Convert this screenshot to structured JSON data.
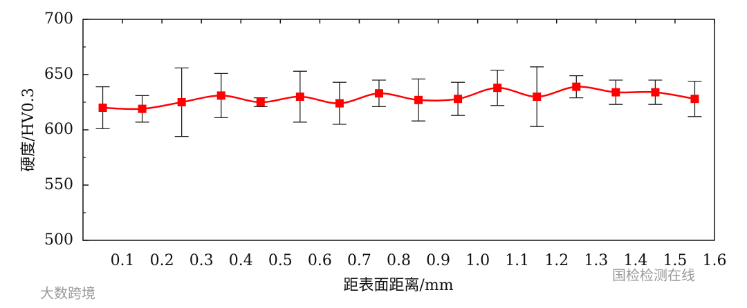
{
  "chart_data": {
    "type": "line",
    "x_label": "距表面距离/mm",
    "y_label": "硬度/HV0.3",
    "x": [
      0.05,
      0.15,
      0.25,
      0.35,
      0.45,
      0.55,
      0.65,
      0.75,
      0.85,
      0.95,
      1.05,
      1.15,
      1.25,
      1.35,
      1.45,
      1.55
    ],
    "series": [
      {
        "color": "#ff0000",
        "values": [
          620,
          619,
          625,
          631,
          625,
          630,
          624,
          633,
          627,
          628,
          638,
          630,
          639,
          634,
          634,
          628
        ],
        "errors": [
          19,
          12,
          31,
          20,
          4,
          23,
          19,
          12,
          19,
          15,
          16,
          27,
          10,
          11,
          11,
          16
        ]
      }
    ],
    "xlim": [
      0,
      1.6
    ],
    "xticks": [
      0.1,
      0.2,
      0.3,
      0.4,
      0.5,
      0.6,
      0.7,
      0.8,
      0.9,
      {
        "value": 1,
        "label": "1.0"
      },
      1.1,
      1.2,
      1.3,
      1.4,
      1.5,
      1.6
    ],
    "ylim": [
      500,
      700
    ],
    "yticks": [
      500,
      550,
      600,
      650,
      700
    ],
    "watermark_left": "大数跨境",
    "watermark_right": "国检检测在线"
  }
}
